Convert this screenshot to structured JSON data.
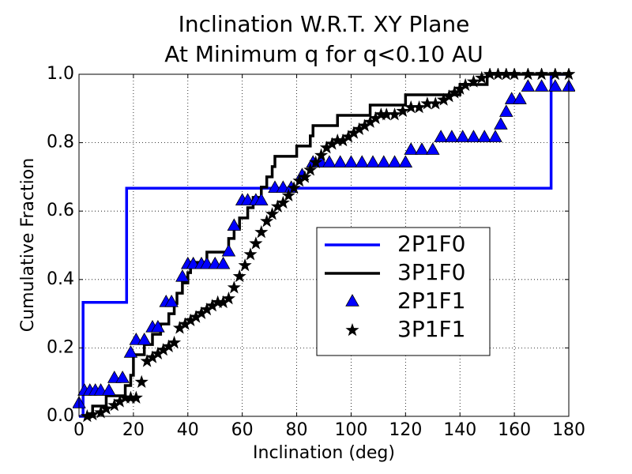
{
  "chart_data": {
    "type": "step-cdf",
    "title": "Inclination W.R.T. XY Plane",
    "subtitle": "At Minimum q for q<0.10 AU",
    "x_label": "Inclination (deg)",
    "y_label": "Cumulative Fraction",
    "xlim": [
      0,
      180
    ],
    "ylim": [
      0,
      1
    ],
    "xticks": [
      0,
      20,
      40,
      60,
      80,
      100,
      120,
      140,
      160,
      180
    ],
    "yticks": [
      {
        "value": 0,
        "label": "0.0"
      },
      0.2,
      0.4,
      0.6,
      0.8,
      {
        "value": 1,
        "label": "1.0"
      }
    ],
    "grid": true,
    "legend": "lower right",
    "series": [
      {
        "name": "2P1F0",
        "kind": "step",
        "color": "#0000ff",
        "x": [
          0,
          1.5,
          17.5,
          173.5,
          180
        ],
        "values": [
          0,
          0.333,
          0.667,
          1.0,
          1.0
        ]
      },
      {
        "name": "3P1F0",
        "kind": "step",
        "color": "#000000",
        "x": [
          3,
          5,
          10,
          17,
          19,
          20,
          24,
          27,
          30,
          33,
          35,
          36,
          38,
          40,
          41,
          47,
          55,
          57,
          59,
          62,
          64,
          67,
          69,
          71,
          72,
          80,
          85,
          86,
          95,
          107,
          120,
          140,
          150,
          180
        ],
        "values": [
          0,
          0.03,
          0.06,
          0.09,
          0.12,
          0.18,
          0.21,
          0.24,
          0.27,
          0.3,
          0.33,
          0.36,
          0.39,
          0.42,
          0.45,
          0.48,
          0.52,
          0.55,
          0.58,
          0.61,
          0.64,
          0.67,
          0.7,
          0.73,
          0.76,
          0.79,
          0.82,
          0.85,
          0.88,
          0.91,
          0.94,
          0.97,
          1.0,
          1.0
        ]
      },
      {
        "name": "2P1F1",
        "kind": "triangle",
        "color": "#0000ff",
        "x": [
          0,
          2,
          4,
          6,
          8,
          11,
          13,
          16,
          19,
          21,
          24,
          27,
          29,
          32,
          34,
          38,
          40,
          42,
          45,
          47,
          50,
          53,
          55,
          57,
          60,
          62,
          65,
          67,
          72,
          75,
          78,
          82,
          86,
          89,
          92,
          96,
          100,
          104,
          108,
          112,
          116,
          120,
          122,
          126,
          130,
          133,
          137,
          141,
          145,
          149,
          153,
          155,
          157,
          159,
          162,
          165,
          170,
          175,
          180
        ],
        "values": [
          0.037,
          0.074,
          0.074,
          0.074,
          0.074,
          0.074,
          0.111,
          0.111,
          0.185,
          0.222,
          0.222,
          0.259,
          0.259,
          0.333,
          0.333,
          0.407,
          0.444,
          0.444,
          0.444,
          0.444,
          0.444,
          0.444,
          0.481,
          0.556,
          0.63,
          0.63,
          0.63,
          0.63,
          0.667,
          0.667,
          0.667,
          0.704,
          0.741,
          0.741,
          0.741,
          0.741,
          0.741,
          0.741,
          0.741,
          0.741,
          0.741,
          0.741,
          0.778,
          0.778,
          0.778,
          0.815,
          0.815,
          0.815,
          0.815,
          0.815,
          0.815,
          0.852,
          0.889,
          0.926,
          0.926,
          0.963,
          0.963,
          0.963,
          0.963
        ]
      },
      {
        "name": "3P1F1",
        "kind": "star",
        "color": "#000000",
        "x": [
          3,
          5,
          8,
          10,
          13,
          15,
          17,
          19,
          21,
          23,
          25,
          27,
          29,
          31,
          33,
          35,
          37,
          39,
          41,
          43,
          45,
          47,
          49,
          51,
          53,
          55,
          57,
          59,
          61,
          63,
          65,
          67,
          69,
          71,
          73,
          75,
          77,
          79,
          81,
          83,
          85,
          87,
          89,
          91,
          93,
          95,
          97,
          99,
          101,
          103,
          105,
          107,
          109,
          111,
          113,
          116,
          119,
          122,
          125,
          128,
          131,
          134,
          136,
          138,
          140,
          142,
          145,
          148,
          151,
          154,
          157,
          160,
          165,
          170,
          175,
          180
        ],
        "values": [
          0,
          0.005,
          0.011,
          0.022,
          0.032,
          0.043,
          0.054,
          0.054,
          0.054,
          0.1,
          0.161,
          0.172,
          0.183,
          0.194,
          0.204,
          0.215,
          0.258,
          0.269,
          0.28,
          0.29,
          0.301,
          0.312,
          0.323,
          0.333,
          0.333,
          0.344,
          0.376,
          0.409,
          0.441,
          0.473,
          0.505,
          0.538,
          0.57,
          0.591,
          0.613,
          0.624,
          0.645,
          0.667,
          0.688,
          0.699,
          0.72,
          0.742,
          0.763,
          0.785,
          0.796,
          0.806,
          0.806,
          0.817,
          0.828,
          0.839,
          0.849,
          0.86,
          0.871,
          0.882,
          0.882,
          0.882,
          0.892,
          0.903,
          0.903,
          0.914,
          0.914,
          0.925,
          0.935,
          0.946,
          0.957,
          0.968,
          0.978,
          0.989,
          1.0,
          1.0,
          1.0,
          1.0,
          1.0,
          1.0,
          1.0,
          1.0
        ]
      }
    ]
  }
}
